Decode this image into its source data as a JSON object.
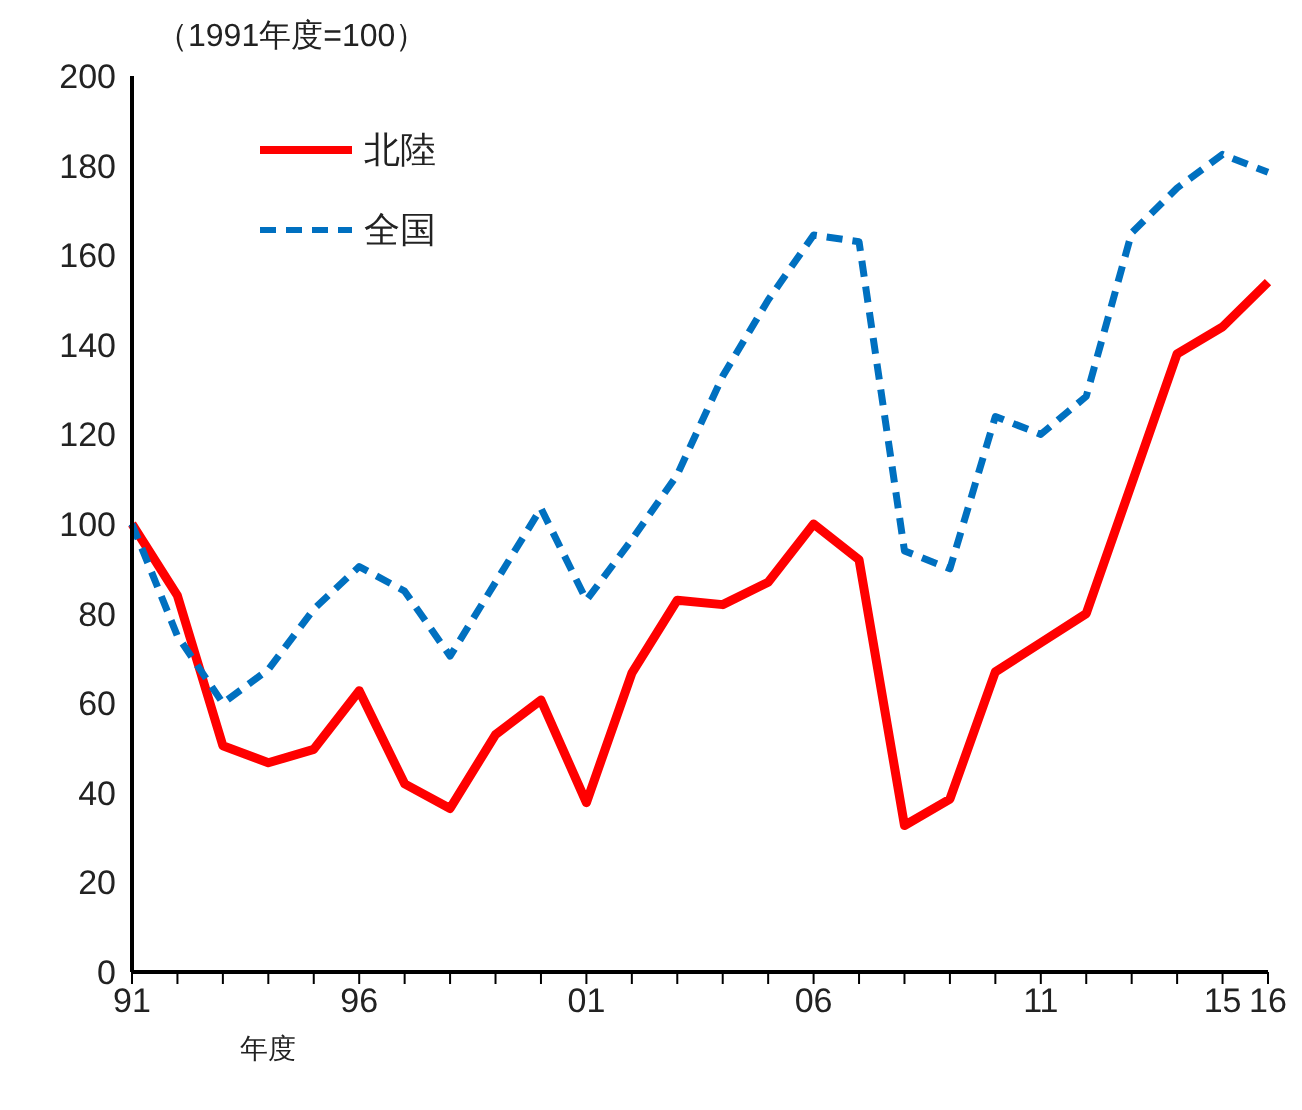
{
  "chart_data": {
    "type": "line",
    "title": "（1991年度=100）",
    "xlabel": "年度",
    "categories": [
      "91",
      null,
      null,
      null,
      null,
      "96",
      null,
      null,
      null,
      null,
      "01",
      null,
      null,
      null,
      null,
      "06",
      null,
      null,
      null,
      null,
      "11",
      null,
      null,
      null,
      "15",
      "16"
    ],
    "series": [
      {
        "name": "北陸",
        "color": "#ff0000",
        "line_style": "solid",
        "values": [
          100,
          84,
          50.5,
          46.7,
          49.7,
          62.8,
          42,
          36.5,
          53,
          60.7,
          37.8,
          66.7,
          83,
          82,
          87,
          100,
          92,
          32.7,
          38.6,
          67,
          73.5,
          80,
          109,
          138,
          144,
          154
        ]
      },
      {
        "name": "全国",
        "color": "#0070c0",
        "line_style": "dashed",
        "values": [
          100,
          75,
          60,
          67.5,
          81,
          90.5,
          85,
          70.5,
          87,
          103.5,
          83,
          96.5,
          111,
          133,
          150,
          164.5,
          163,
          94,
          90,
          124,
          120,
          128.5,
          165,
          175,
          182.5,
          178.5
        ]
      }
    ],
    "ylim": [
      0,
      200
    ],
    "yticks": [
      0,
      20,
      40,
      60,
      80,
      100,
      120,
      140,
      160,
      180,
      200
    ],
    "grid": false,
    "legend": "top left",
    "marker": "none"
  }
}
